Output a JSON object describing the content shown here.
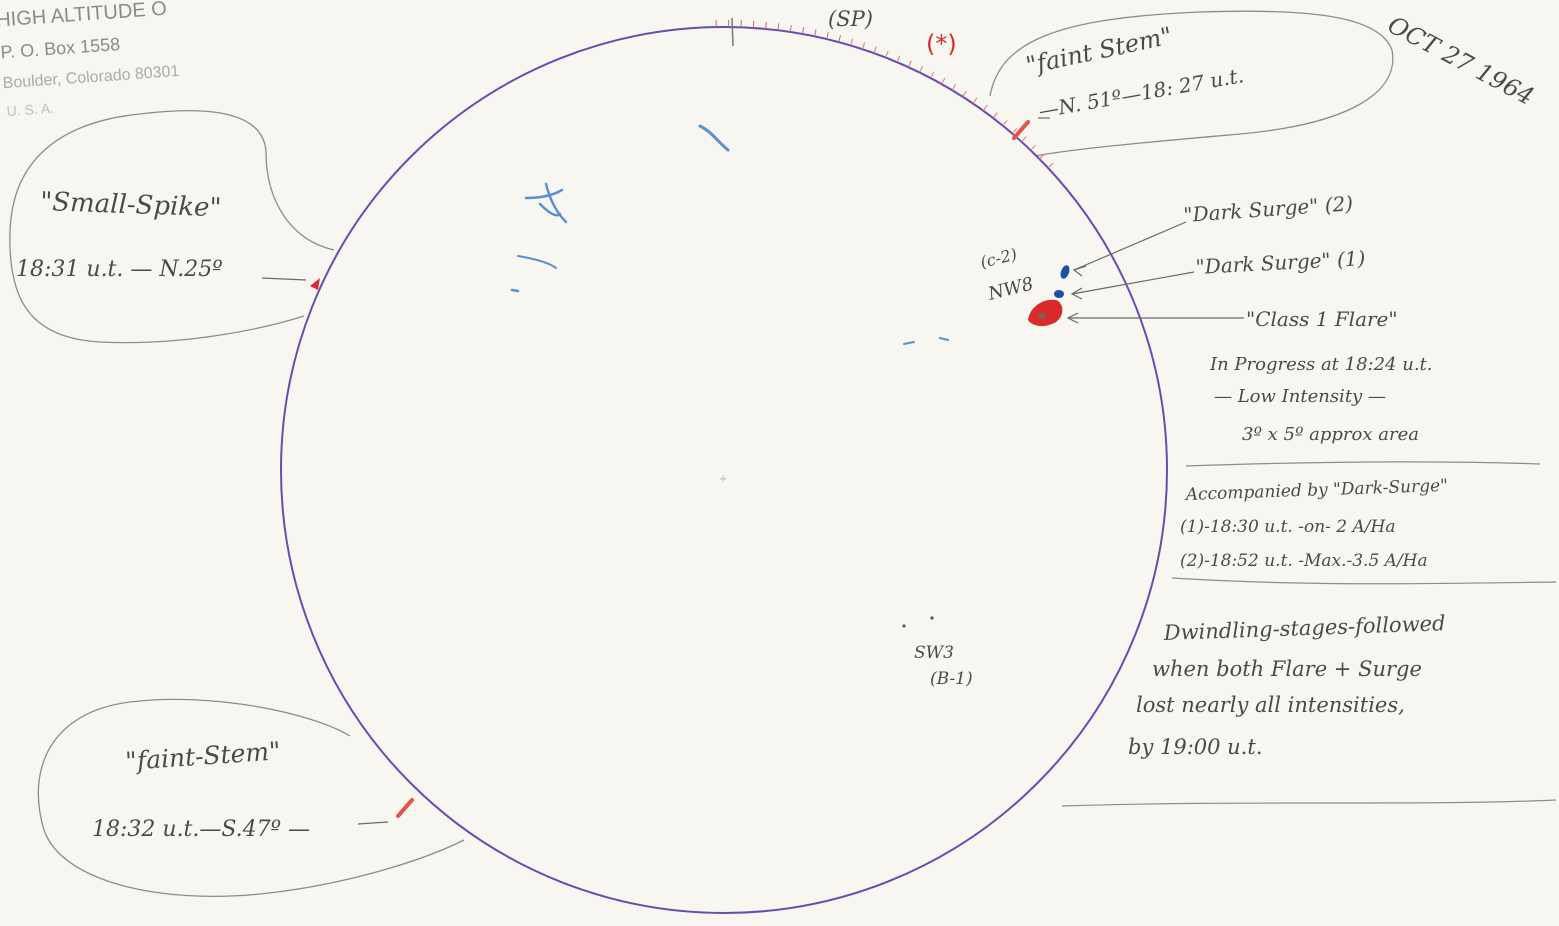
{
  "letterhead": {
    "line1": "HIGH ALTITUDE O",
    "line2": "P. O. Box 1558",
    "line3": "Boulder, Colorado   80301",
    "line4": "U. S. A."
  },
  "date": "OCT 27 1964",
  "top_labels": {
    "sp": "(SP)",
    "star": "(*)"
  },
  "callouts": {
    "faint_stem_north": {
      "title": "\"faint Stem\"",
      "detail": "—N. 51º—18: 27 u.t."
    },
    "small_spike": {
      "title": "\"Small-Spike\"",
      "detail": "18:31 u.t. — N.25º"
    },
    "faint_stem_south": {
      "title": "\"faint-Stem\"",
      "detail": "18:32 u.t.—S.47º —"
    }
  },
  "regions": {
    "nw8_code": "(c-2)",
    "nw8": "NW8",
    "sw3": "SW3",
    "sw3_code": "(B-1)"
  },
  "annotations": {
    "dark_surge_2": "\"Dark Surge\" (2)",
    "dark_surge_1": "\"Dark Surge\" (1)",
    "class1_flare": "\"Class 1 Flare\"",
    "flare_line1": "In Progress at 18:24 u.t.",
    "flare_line2": "— Low Intensity —",
    "flare_line3": "3º x 5º approx area",
    "accomp_line1": "Accompanied by \"Dark-Surge\"",
    "accomp_line2": "(1)-18:30 u.t. -on- 2 A/Ha",
    "accomp_line3": "(2)-18:52 u.t. -Max.-3.5 A/Ha",
    "dwindle_line1": "Dwindling-stages-followed",
    "dwindle_line2": "when both Flare + Surge",
    "dwindle_line3": "lost nearly all intensities,",
    "dwindle_line4": "by 19:00 u.t."
  },
  "colors": {
    "limb": "#6a4bb0",
    "flare": "#d92b2b",
    "surge": "#1f4fa0",
    "filament": "#5b8fd0",
    "pencil": "#4a4a4a"
  }
}
